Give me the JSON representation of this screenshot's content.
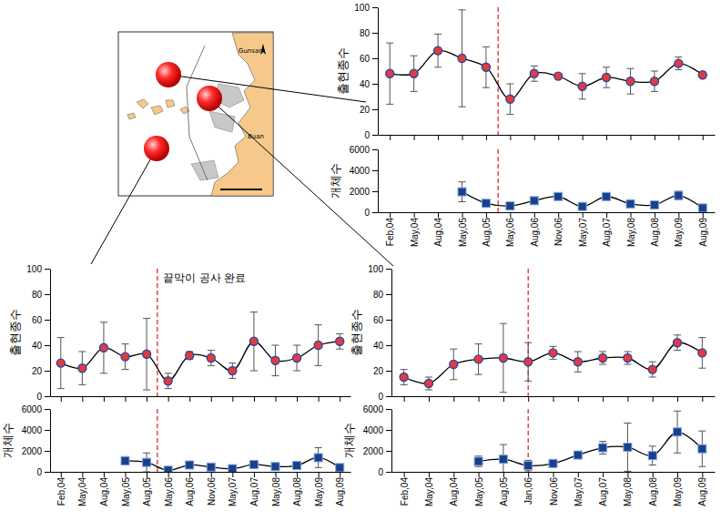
{
  "chart_data": [
    {
      "type": "line",
      "y_label": "출현종수",
      "categories": [
        "Feb,04",
        "May,04",
        "Aug,04",
        "May,05",
        "Aug,05",
        "May,06",
        "Aug,06",
        "Nov,06",
        "May,07",
        "Aug,07",
        "May,08",
        "Aug,08",
        "May,09",
        "Aug,09"
      ],
      "values": [
        48,
        48,
        66,
        60,
        53,
        28,
        48,
        46,
        38,
        45,
        42,
        42,
        56,
        47
      ],
      "errors": [
        24,
        14,
        13,
        38,
        16,
        12,
        6,
        2,
        10,
        8,
        10,
        8,
        5,
        2
      ],
      "ylim": [
        0,
        100
      ],
      "yticks": [
        0,
        20,
        40,
        60,
        80,
        100
      ],
      "color": "#e8383d",
      "marker": "circle",
      "line_style": "solid",
      "tick_labels": "y",
      "vline": 4.5
    },
    {
      "type": "line",
      "y_label": "개체수",
      "categories": [
        "Feb,04",
        "May,04",
        "Aug,04",
        "May,05",
        "Aug,05",
        "May,06",
        "Aug,06",
        "Nov,06",
        "May,07",
        "Aug,07",
        "May,08",
        "Aug,08",
        "May,09",
        "Aug,09"
      ],
      "values": [
        null,
        null,
        null,
        1950,
        850,
        600,
        1100,
        1500,
        550,
        1500,
        800,
        700,
        1600,
        400
      ],
      "errors": [
        null,
        null,
        null,
        950,
        150,
        100,
        200,
        100,
        150,
        100,
        300,
        300,
        400,
        80
      ],
      "ylim": [
        0,
        6000
      ],
      "yticks": [
        0,
        2000,
        4000,
        6000
      ],
      "color": "#1a3f8f",
      "marker": "square",
      "line_style": "solid",
      "tick_labels": true,
      "vline": 4.5
    },
    {
      "type": "line",
      "y_label": "출현종수",
      "annotation": "끝막이 공사 완료",
      "categories": [
        "Feb,04",
        "May,04",
        "Aug,04",
        "May,05",
        "Aug,05",
        "May,06",
        "Aug,06",
        "Nov,06",
        "May,07",
        "Aug,07",
        "May,08",
        "Aug,08",
        "May,09",
        "Aug,09"
      ],
      "values": [
        26,
        22,
        38,
        31,
        33,
        12,
        32,
        30,
        20,
        43,
        28,
        30,
        40,
        43
      ],
      "errors": [
        20,
        13,
        20,
        10,
        28,
        6,
        3,
        6,
        6,
        23,
        12,
        10,
        16,
        6
      ],
      "ylim": [
        0,
        100
      ],
      "yticks": [
        0,
        20,
        40,
        60,
        80,
        100
      ],
      "color": "#e8383d",
      "marker": "circle",
      "line_style": "solid",
      "tick_labels": "y",
      "vline": 4.5
    },
    {
      "type": "line",
      "y_label": "개체수",
      "categories": [
        "Feb,04",
        "May,04",
        "Aug,04",
        "May,05",
        "Aug,05",
        "May,06",
        "Aug,06",
        "Nov,06",
        "May,07",
        "Aug,07",
        "May,08",
        "Aug,08",
        "May,09",
        "Aug,09"
      ],
      "values": [
        null,
        null,
        null,
        1050,
        900,
        150,
        650,
        450,
        300,
        700,
        500,
        600,
        1350,
        400
      ],
      "errors": [
        null,
        null,
        null,
        400,
        900,
        100,
        150,
        200,
        100,
        350,
        200,
        150,
        950,
        100
      ],
      "ylim": [
        0,
        6000
      ],
      "yticks": [
        0,
        2000,
        4000,
        6000
      ],
      "color": "#1a3f8f",
      "marker": "square",
      "line_style": "solid",
      "tick_labels": true,
      "vline": 4.5
    },
    {
      "type": "line",
      "y_label": "출현종수",
      "categories": [
        "Feb,04",
        "May,04",
        "Aug,04",
        "May,05",
        "Aug,05",
        "Jan,06",
        "Nov,06",
        "May,07",
        "Aug,07",
        "May,08",
        "Aug,08",
        "May,09",
        "Aug,09"
      ],
      "values": [
        15,
        10,
        25,
        29,
        30,
        27,
        34,
        27,
        30,
        30,
        21,
        42,
        34
      ],
      "errors": [
        6,
        5,
        12,
        12,
        27,
        15,
        5,
        8,
        5,
        5,
        6,
        6,
        12
      ],
      "ylim": [
        0,
        100
      ],
      "yticks": [
        0,
        20,
        40,
        60,
        80,
        100
      ],
      "color": "#e8383d",
      "marker": "circle",
      "line_style": "solid",
      "tick_labels": "y",
      "vline": 5
    },
    {
      "type": "line",
      "y_label": "개체수",
      "categories": [
        "Feb,04",
        "May,04",
        "Aug,04",
        "May,05",
        "Aug,05",
        "Jan,06",
        "Nov,06",
        "May,07",
        "Aug,07",
        "May,08",
        "Aug,08",
        "May,09",
        "Aug,09"
      ],
      "values": [
        null,
        null,
        null,
        1000,
        1200,
        600,
        800,
        1600,
        2300,
        2350,
        1550,
        3800,
        2200
      ],
      "errors": [
        null,
        null,
        null,
        500,
        1400,
        500,
        100,
        300,
        600,
        2300,
        900,
        2000,
        1700
      ],
      "ylim": [
        0,
        6000
      ],
      "yticks": [
        0,
        2000,
        4000,
        6000
      ],
      "color": "#1a3f8f",
      "marker": "square",
      "line_style": "solid",
      "tick_labels": true,
      "vline": 5
    }
  ],
  "map_labels": [
    "Gunsan",
    "Buan"
  ]
}
